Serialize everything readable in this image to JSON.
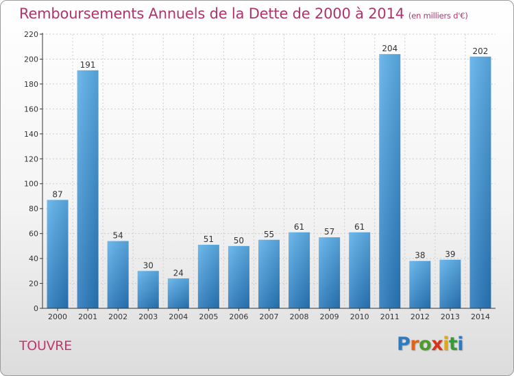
{
  "header": {
    "title": "Remboursements Annuels de la Dette de 2000 à 2014",
    "unit": "(en milliers d'€)"
  },
  "commune": "TOUVRE",
  "logo": {
    "text": "Proxiti",
    "letters": [
      "P",
      "r",
      "o",
      "x",
      "i",
      "t",
      "i"
    ]
  },
  "colors": {
    "title": "#b0336a",
    "bar_light": "#5aaee8",
    "bar_dark": "#2a7cc0",
    "axis": "#333333",
    "grid": "#cccccc"
  },
  "chart_data": {
    "type": "bar",
    "title": "Remboursements Annuels de la Dette de 2000 à 2014",
    "xlabel": "",
    "ylabel": "",
    "categories": [
      "2000",
      "2001",
      "2002",
      "2003",
      "2004",
      "2005",
      "2006",
      "2007",
      "2008",
      "2009",
      "2010",
      "2011",
      "2012",
      "2013",
      "2014"
    ],
    "values": [
      87,
      191,
      54,
      30,
      24,
      51,
      50,
      55,
      61,
      57,
      61,
      204,
      38,
      39,
      202
    ],
    "ylim": [
      0,
      220
    ],
    "yticks": [
      0,
      20,
      40,
      60,
      80,
      100,
      120,
      140,
      160,
      180,
      200,
      220
    ],
    "grid": true,
    "data_labels": true
  }
}
